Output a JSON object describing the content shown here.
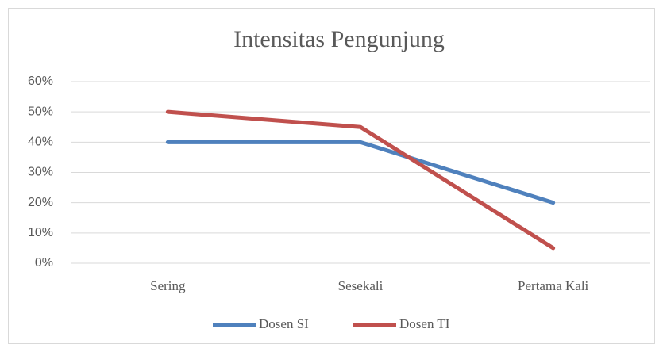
{
  "chart_data": {
    "type": "line",
    "title": "Intensitas Pengunjung",
    "categories": [
      "Sering",
      "Sesekali",
      "Pertama Kali"
    ],
    "series": [
      {
        "name": "Dosen SI",
        "color": "#4f81bd",
        "values": [
          40,
          40,
          20
        ]
      },
      {
        "name": "Dosen TI",
        "color": "#c0504d",
        "values": [
          50,
          45,
          5
        ]
      }
    ],
    "ylim": [
      0,
      60
    ],
    "yticks": [
      {
        "value": 0,
        "label": "0%"
      },
      {
        "value": 10,
        "label": "10%"
      },
      {
        "value": 20,
        "label": "20%"
      },
      {
        "value": 30,
        "label": "30%"
      },
      {
        "value": 40,
        "label": "40%"
      },
      {
        "value": 50,
        "label": "50%"
      },
      {
        "value": 60,
        "label": "60%"
      }
    ],
    "grid": true,
    "legend": "bottom"
  }
}
